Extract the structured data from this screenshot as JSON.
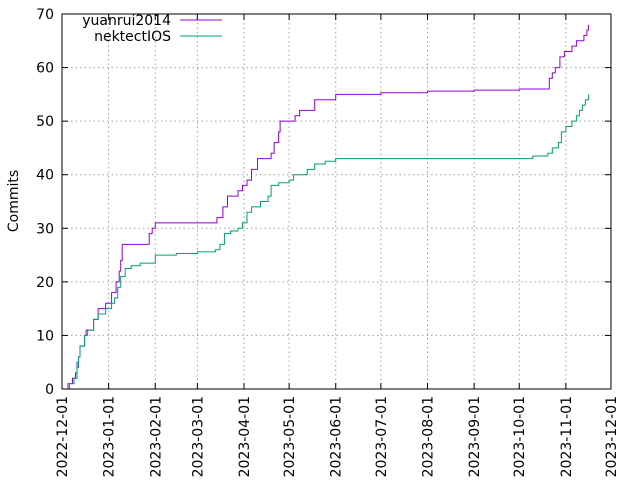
{
  "chart_data": {
    "type": "line",
    "title": "",
    "xlabel": "",
    "ylabel": "Commits",
    "ylim": [
      0,
      70
    ],
    "yticks": [
      "0",
      "10",
      "20",
      "30",
      "40",
      "50",
      "60",
      "70"
    ],
    "xlim": [
      "2022-12-01",
      "2023-12-01"
    ],
    "xticks": [
      "2022-12-01",
      "2023-01-01",
      "2023-02-01",
      "2023-03-01",
      "2023-04-01",
      "2023-05-01",
      "2023-06-01",
      "2023-07-01",
      "2023-08-01",
      "2023-09-01",
      "2023-10-01",
      "2023-11-01",
      "2023-12-01"
    ],
    "grid": true,
    "legend_position": "top-left",
    "series": [
      {
        "name": "yuanrui2014",
        "color": "#9400d3",
        "step": true,
        "points": [
          [
            "2022-12-04",
            0
          ],
          [
            "2022-12-05",
            1
          ],
          [
            "2022-12-08",
            2
          ],
          [
            "2022-12-10",
            3
          ],
          [
            "2022-12-11",
            5
          ],
          [
            "2022-12-12",
            6
          ],
          [
            "2022-12-13",
            8
          ],
          [
            "2022-12-16",
            10
          ],
          [
            "2022-12-17",
            11
          ],
          [
            "2022-12-22",
            13
          ],
          [
            "2022-12-25",
            15
          ],
          [
            "2022-12-30",
            16
          ],
          [
            "2023-01-03",
            18
          ],
          [
            "2023-01-06",
            20
          ],
          [
            "2023-01-08",
            22
          ],
          [
            "2023-01-09",
            24
          ],
          [
            "2023-01-10",
            27
          ],
          [
            "2023-01-28",
            29
          ],
          [
            "2023-01-30",
            30
          ],
          [
            "2023-02-01",
            31
          ],
          [
            "2023-03-14",
            32
          ],
          [
            "2023-03-18",
            34
          ],
          [
            "2023-03-21",
            36
          ],
          [
            "2023-03-28",
            37
          ],
          [
            "2023-03-31",
            38
          ],
          [
            "2023-04-03",
            39
          ],
          [
            "2023-04-06",
            41
          ],
          [
            "2023-04-10",
            43
          ],
          [
            "2023-04-19",
            44
          ],
          [
            "2023-04-21",
            46
          ],
          [
            "2023-04-24",
            48
          ],
          [
            "2023-04-25",
            50
          ],
          [
            "2023-05-05",
            51
          ],
          [
            "2023-05-08",
            52
          ],
          [
            "2023-05-18",
            54
          ],
          [
            "2023-06-01",
            55
          ],
          [
            "2023-07-01",
            55.3
          ],
          [
            "2023-08-01",
            55.6
          ],
          [
            "2023-09-01",
            55.8
          ],
          [
            "2023-10-01",
            56
          ],
          [
            "2023-10-20",
            56
          ],
          [
            "2023-10-21",
            58
          ],
          [
            "2023-10-23",
            59
          ],
          [
            "2023-10-25",
            60
          ],
          [
            "2023-10-28",
            62
          ],
          [
            "2023-10-31",
            63
          ],
          [
            "2023-11-05",
            64
          ],
          [
            "2023-11-08",
            65
          ],
          [
            "2023-11-13",
            66
          ],
          [
            "2023-11-15",
            67
          ],
          [
            "2023-11-16",
            68
          ]
        ]
      },
      {
        "name": "nektectIOS",
        "color": "#009e73",
        "step": true,
        "points": [
          [
            "2022-12-04",
            0
          ],
          [
            "2022-12-06",
            1
          ],
          [
            "2022-12-09",
            2
          ],
          [
            "2022-12-11",
            4
          ],
          [
            "2022-12-12",
            6
          ],
          [
            "2022-12-13",
            8
          ],
          [
            "2022-12-16",
            10
          ],
          [
            "2022-12-18",
            11
          ],
          [
            "2022-12-22",
            13
          ],
          [
            "2022-12-25",
            14
          ],
          [
            "2022-12-30",
            15
          ],
          [
            "2023-01-03",
            16
          ],
          [
            "2023-01-05",
            17
          ],
          [
            "2023-01-07",
            19
          ],
          [
            "2023-01-09",
            21
          ],
          [
            "2023-01-12",
            22.5
          ],
          [
            "2023-01-16",
            23
          ],
          [
            "2023-01-22",
            23.5
          ],
          [
            "2023-02-01",
            25
          ],
          [
            "2023-02-15",
            25.3
          ],
          [
            "2023-03-01",
            25.6
          ],
          [
            "2023-03-13",
            26
          ],
          [
            "2023-03-16",
            27
          ],
          [
            "2023-03-19",
            29
          ],
          [
            "2023-03-23",
            29.5
          ],
          [
            "2023-03-28",
            30
          ],
          [
            "2023-03-31",
            31
          ],
          [
            "2023-04-03",
            33
          ],
          [
            "2023-04-06",
            34
          ],
          [
            "2023-04-12",
            35
          ],
          [
            "2023-04-17",
            36
          ],
          [
            "2023-04-19",
            38
          ],
          [
            "2023-04-24",
            38.5
          ],
          [
            "2023-05-01",
            39
          ],
          [
            "2023-05-04",
            40
          ],
          [
            "2023-05-13",
            41
          ],
          [
            "2023-05-18",
            42
          ],
          [
            "2023-05-25",
            42.5
          ],
          [
            "2023-06-01",
            43
          ],
          [
            "2023-07-01",
            43
          ],
          [
            "2023-08-01",
            43
          ],
          [
            "2023-09-01",
            43
          ],
          [
            "2023-10-01",
            43
          ],
          [
            "2023-10-10",
            43.5
          ],
          [
            "2023-10-20",
            44
          ],
          [
            "2023-10-23",
            45
          ],
          [
            "2023-10-27",
            46
          ],
          [
            "2023-10-29",
            48
          ],
          [
            "2023-11-01",
            49
          ],
          [
            "2023-11-05",
            50
          ],
          [
            "2023-11-08",
            51
          ],
          [
            "2023-11-10",
            52
          ],
          [
            "2023-11-12",
            53
          ],
          [
            "2023-11-14",
            54
          ],
          [
            "2023-11-16",
            55
          ]
        ]
      }
    ]
  }
}
